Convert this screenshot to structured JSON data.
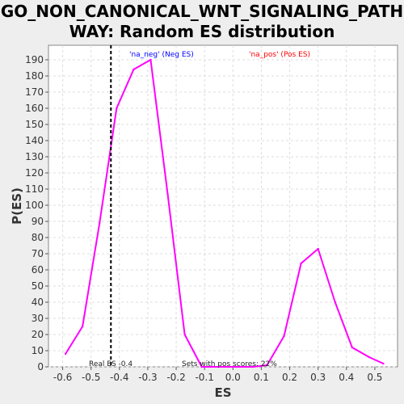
{
  "title_line1": "GO_NON_CANONICAL_WNT_SIGNALING_PATH",
  "title_line2": "WAY: Random ES distribution",
  "colors": {
    "curve": "#ff00ff",
    "neg_label": "#0000ff",
    "pos_label": "#ff0000",
    "real_es_line": "#000000",
    "plot_bg": "#ffffff",
    "page_bg": "#eeeeee"
  },
  "annotations": {
    "neg_label": "'na_neg' (Neg ES)",
    "pos_label": "'na_pos' (Pos ES)",
    "real_es": "Real ES -0.4",
    "sets_pos": "Sets with pos scores: 22%"
  },
  "chart_data": {
    "type": "line",
    "xlabel": "ES",
    "ylabel": "P(ES)",
    "xlim": [
      -0.65,
      0.58
    ],
    "ylim": [
      0,
      199
    ],
    "xticks": [
      -0.6,
      -0.5,
      -0.4,
      -0.3,
      -0.2,
      -0.1,
      0.0,
      0.1,
      0.2,
      0.3,
      0.4,
      0.5
    ],
    "xtick_labels": [
      "-0.6",
      "-0.5",
      "-0.4",
      "-0.3",
      "-0.2",
      "-0.1",
      "0.0",
      "0.1",
      "0.2",
      "0.3",
      "0.4",
      "0.5"
    ],
    "yticks": [
      0,
      10,
      20,
      30,
      40,
      50,
      60,
      70,
      80,
      90,
      100,
      110,
      120,
      130,
      140,
      150,
      160,
      170,
      180,
      190
    ],
    "grid": true,
    "real_es": -0.43,
    "series": [
      {
        "x": [
          -0.59,
          -0.53,
          -0.47,
          -0.41,
          -0.35,
          -0.29,
          -0.23,
          -0.17,
          -0.11,
          -0.05,
          0.01,
          0.07,
          0.12,
          0.18,
          0.24,
          0.3,
          0.36,
          0.42,
          0.48,
          0.53
        ],
        "y": [
          8,
          25,
          89,
          160,
          184,
          190,
          107,
          20,
          0,
          0,
          0,
          0,
          1,
          19,
          64,
          73,
          40,
          12,
          6,
          2
        ]
      }
    ]
  }
}
